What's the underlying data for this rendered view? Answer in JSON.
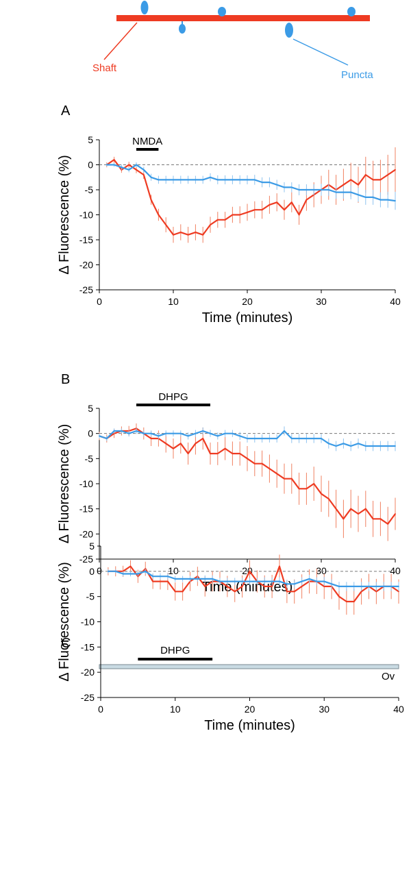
{
  "diagram": {
    "shaft_label": "Shaft",
    "puncta_label": "Puncta",
    "shaft_color": "#ee3b22",
    "puncta_color": "#3b9be6"
  },
  "colors": {
    "shaft": "#ee3b22",
    "puncta": "#3b9be6",
    "error_shaft": "#f08060",
    "error_puncta": "#8fc3ef",
    "ov_bar": "#c9dbe3"
  },
  "chart_data": [
    {
      "type": "line",
      "panel_label": "A",
      "drug": {
        "label": "NMDA",
        "start": 5,
        "end": 8
      },
      "xlabel": "Time (minutes)",
      "ylabel": "Δ Fluorescence (%)",
      "xlim": [
        0,
        40
      ],
      "ylim": [
        -25,
        5
      ],
      "xticks": [
        "0",
        "10",
        "20",
        "30",
        "40"
      ],
      "yticks": [
        "5",
        "0",
        "-5",
        "-10",
        "-15",
        "-20",
        "-25"
      ],
      "baseline": 0,
      "series": [
        {
          "key": "shaft",
          "x": [
            1,
            2,
            3,
            4,
            5,
            6,
            7,
            8,
            9,
            10,
            11,
            12,
            13,
            14,
            15,
            16,
            17,
            18,
            19,
            20,
            21,
            22,
            23,
            24,
            25,
            26,
            27,
            28,
            29,
            30,
            31,
            32,
            33,
            34,
            35,
            36,
            37,
            38,
            39,
            40
          ],
          "y": [
            0,
            1,
            -1,
            0,
            -1,
            -2,
            -7,
            -10,
            -12,
            -14,
            -13.5,
            -14,
            -13.5,
            -14,
            -12,
            -11,
            -11,
            -10,
            -10,
            -9.5,
            -9,
            -9,
            -8,
            -7.5,
            -9,
            -7.5,
            -10,
            -7,
            -6,
            -5,
            -4,
            -5,
            -4,
            -3,
            -4,
            -2,
            -3,
            -3,
            -2,
            -1
          ],
          "err": [
            0.5,
            0.6,
            0.6,
            0.6,
            0.7,
            0.8,
            1,
            1.2,
            1.5,
            1.6,
            1.6,
            1.6,
            1.6,
            1.6,
            1.6,
            1.6,
            1.6,
            1.6,
            1.7,
            1.7,
            1.7,
            1.8,
            1.8,
            1.8,
            2,
            2,
            2,
            2.2,
            2.5,
            2.8,
            3,
            3,
            3.2,
            3.4,
            3.6,
            3.6,
            3.8,
            4,
            4,
            4.5
          ]
        },
        {
          "key": "puncta",
          "x": [
            1,
            2,
            3,
            4,
            5,
            6,
            7,
            8,
            9,
            10,
            11,
            12,
            13,
            14,
            15,
            16,
            17,
            18,
            19,
            20,
            21,
            22,
            23,
            24,
            25,
            26,
            27,
            28,
            29,
            30,
            31,
            32,
            33,
            34,
            35,
            36,
            37,
            38,
            39,
            40
          ],
          "y": [
            0,
            0,
            -0.5,
            -1,
            0,
            -1,
            -2.5,
            -3,
            -3,
            -3,
            -3,
            -3,
            -3,
            -3,
            -2.5,
            -3,
            -3,
            -3,
            -3,
            -3,
            -3,
            -3.5,
            -3.5,
            -4,
            -4.5,
            -4.5,
            -5,
            -5,
            -5,
            -5,
            -5,
            -5.5,
            -5.5,
            -5.5,
            -6,
            -6.5,
            -6.5,
            -7,
            -7,
            -7.2
          ],
          "err": [
            0.3,
            0.4,
            0.5,
            0.5,
            0.5,
            0.6,
            0.7,
            0.8,
            0.8,
            0.8,
            0.8,
            0.8,
            0.8,
            0.8,
            0.8,
            0.9,
            0.9,
            0.9,
            0.9,
            0.9,
            1,
            1,
            1,
            1,
            1,
            1,
            1.1,
            1.1,
            1.1,
            1.2,
            1.2,
            1.3,
            1.3,
            1.4,
            1.4,
            1.5,
            1.5,
            1.5,
            1.6,
            1.8
          ]
        }
      ]
    },
    {
      "type": "line",
      "panel_label": "B",
      "drug": {
        "label": "DHPG",
        "start": 5,
        "end": 15
      },
      "xlabel": "Time (minutes)",
      "ylabel": "Δ Fluorescence (%)",
      "xlim": [
        0,
        40
      ],
      "ylim": [
        -25,
        5
      ],
      "xticks": [
        "0",
        "10",
        "20",
        "30",
        "40"
      ],
      "yticks": [
        "5",
        "0",
        "-5",
        "-10",
        "-15",
        "-20",
        "-25"
      ],
      "baseline": 0,
      "series": [
        {
          "key": "shaft",
          "x": [
            0,
            1,
            2,
            3,
            4,
            5,
            6,
            7,
            8,
            9,
            10,
            11,
            12,
            13,
            14,
            15,
            16,
            17,
            18,
            19,
            20,
            21,
            22,
            23,
            24,
            25,
            26,
            27,
            28,
            29,
            30,
            31,
            32,
            33,
            34,
            35,
            36,
            37,
            38,
            39,
            40
          ],
          "y": [
            -0.5,
            -1,
            0,
            0.5,
            0.5,
            1,
            0,
            -1,
            -1,
            -2,
            -3,
            -2,
            -4,
            -2,
            -1,
            -4,
            -4,
            -3,
            -4,
            -4,
            -5,
            -6,
            -6,
            -7,
            -8,
            -9,
            -9,
            -11,
            -11,
            -10,
            -12,
            -13,
            -15,
            -17,
            -15,
            -16,
            -15,
            -17,
            -17,
            -18,
            -16
          ],
          "err": [
            0.8,
            0.8,
            0.9,
            0.9,
            1,
            1,
            1.2,
            1.5,
            1.6,
            1.8,
            2,
            2,
            2.2,
            2.2,
            2.2,
            2.2,
            2.3,
            2.3,
            2.4,
            2.4,
            2.5,
            2.5,
            2.6,
            2.8,
            2.8,
            3,
            3,
            3.2,
            3.2,
            3.4,
            3.6,
            3.6,
            3.8,
            3.8,
            3.8,
            3.6,
            3.6,
            3.6,
            3.4,
            3.4,
            3.2
          ]
        },
        {
          "key": "puncta",
          "x": [
            0,
            1,
            2,
            3,
            4,
            5,
            6,
            7,
            8,
            9,
            10,
            11,
            12,
            13,
            14,
            15,
            16,
            17,
            18,
            19,
            20,
            21,
            22,
            23,
            24,
            25,
            26,
            27,
            28,
            29,
            30,
            31,
            32,
            33,
            34,
            35,
            36,
            37,
            38,
            39,
            40
          ],
          "y": [
            -0.5,
            -1,
            0.5,
            0.5,
            0,
            0.5,
            0,
            0,
            -0.5,
            0,
            0,
            0,
            -0.5,
            0,
            0.5,
            0,
            -0.5,
            0,
            0,
            -0.5,
            -1,
            -1,
            -1,
            -1,
            -1,
            0.5,
            -1,
            -1,
            -1,
            -1,
            -1,
            -2,
            -2.5,
            -2,
            -2.5,
            -2,
            -2.5,
            -2.5,
            -2.5,
            -2.5,
            -2.5
          ],
          "err": [
            0.5,
            0.5,
            0.5,
            0.5,
            0.6,
            0.6,
            0.6,
            0.6,
            0.6,
            0.6,
            0.6,
            0.6,
            0.7,
            0.7,
            0.7,
            0.7,
            0.7,
            0.7,
            0.7,
            0.8,
            0.8,
            0.8,
            0.8,
            0.8,
            0.8,
            0.9,
            0.9,
            0.9,
            0.9,
            0.9,
            0.9,
            1,
            1,
            1,
            1,
            1,
            1,
            1,
            1,
            1,
            1
          ]
        }
      ]
    },
    {
      "type": "line",
      "panel_label": "C",
      "drug": {
        "label": "DHPG",
        "start": 5,
        "end": 15
      },
      "bar_label": "Ov",
      "xlabel": "Time (minutes)",
      "ylabel": "Δ Fluorescence (%)",
      "xlim": [
        0,
        40
      ],
      "ylim": [
        -25,
        5
      ],
      "xticks": [
        "0",
        "10",
        "20",
        "30",
        "40"
      ],
      "yticks": [
        "5",
        "0",
        "-5",
        "-10",
        "-15",
        "-20",
        "-25"
      ],
      "baseline": 0,
      "series": [
        {
          "key": "shaft",
          "x": [
            1,
            2,
            3,
            4,
            5,
            6,
            7,
            8,
            9,
            10,
            11,
            12,
            13,
            14,
            15,
            16,
            17,
            18,
            19,
            20,
            21,
            22,
            23,
            24,
            25,
            26,
            27,
            28,
            29,
            30,
            31,
            32,
            33,
            34,
            35,
            36,
            37,
            38,
            39,
            40
          ],
          "y": [
            0,
            0,
            0,
            1,
            -1,
            0.5,
            -2,
            -2,
            -2,
            -4,
            -4,
            -2,
            -1,
            -3,
            -2,
            -2,
            -3,
            -4,
            -3,
            0,
            -2,
            -3,
            -3,
            1,
            -4,
            -4,
            -3,
            -2,
            -2,
            -3,
            -3,
            -5,
            -6,
            -6,
            -4,
            -3,
            -4,
            -3,
            -3,
            -4
          ],
          "err": [
            0.8,
            1,
            1.1,
            1.2,
            1.3,
            1.4,
            1.5,
            1.6,
            1.7,
            1.8,
            1.8,
            1.9,
            1.9,
            2,
            2,
            2,
            2.1,
            2.1,
            2.2,
            2.2,
            2.2,
            2.2,
            2.3,
            2.3,
            2.3,
            2.4,
            2.4,
            2.4,
            2.5,
            2.5,
            2.5,
            2.6,
            2.6,
            2.6,
            2.6,
            2.5,
            2.5,
            2.5,
            2.5,
            2.4
          ]
        },
        {
          "key": "puncta",
          "x": [
            1,
            2,
            3,
            4,
            5,
            6,
            7,
            8,
            9,
            10,
            11,
            12,
            13,
            14,
            15,
            16,
            17,
            18,
            19,
            20,
            21,
            22,
            23,
            24,
            25,
            26,
            27,
            28,
            29,
            30,
            31,
            32,
            33,
            34,
            35,
            36,
            37,
            38,
            39,
            40
          ],
          "y": [
            0,
            0,
            -0.5,
            -0.5,
            -0.5,
            0,
            -1,
            -1,
            -1,
            -1.5,
            -1.5,
            -1.5,
            -1.5,
            -1.5,
            -1.5,
            -2,
            -2,
            -2,
            -2,
            -2,
            -2,
            -2,
            -2,
            -2,
            -2.5,
            -2.5,
            -2,
            -1.5,
            -2,
            -2,
            -2.5,
            -3,
            -3,
            -3,
            -3,
            -3,
            -3,
            -3,
            -3,
            -3
          ],
          "err": [
            0.4,
            0.4,
            0.5,
            0.5,
            0.5,
            0.5,
            0.6,
            0.6,
            0.6,
            0.6,
            0.6,
            0.6,
            0.6,
            0.7,
            0.7,
            0.7,
            0.7,
            0.7,
            0.7,
            0.7,
            0.7,
            0.8,
            0.8,
            0.8,
            0.8,
            0.8,
            0.8,
            0.8,
            0.8,
            0.9,
            0.9,
            0.9,
            0.9,
            0.9,
            0.9,
            0.9,
            0.9,
            0.9,
            0.9,
            0.9
          ]
        }
      ]
    }
  ]
}
